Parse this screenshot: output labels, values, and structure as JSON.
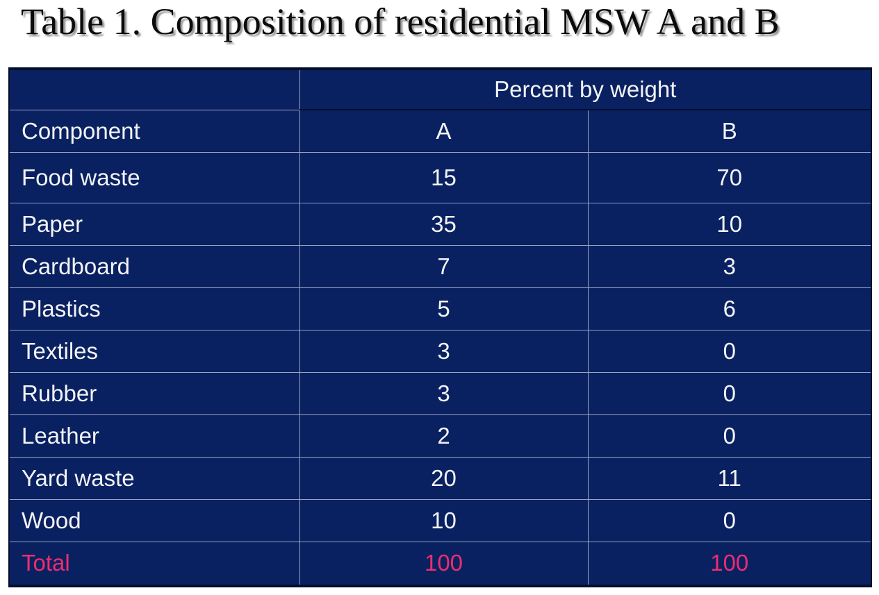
{
  "slide": {
    "title": "Table 1. Composition of residential MSW A and B"
  },
  "table": {
    "group_header": "Percent by weight",
    "component_header": "Component",
    "columns": [
      "A",
      "B"
    ],
    "rows": [
      {
        "component": "Food waste",
        "a": "15",
        "b": "70"
      },
      {
        "component": "Paper",
        "a": "35",
        "b": "10"
      },
      {
        "component": "Cardboard",
        "a": "7",
        "b": "3"
      },
      {
        "component": "Plastics",
        "a": "5",
        "b": "6"
      },
      {
        "component": "Textiles",
        "a": "3",
        "b": "0"
      },
      {
        "component": "Rubber",
        "a": "3",
        "b": "0"
      },
      {
        "component": "Leather",
        "a": "2",
        "b": "0"
      },
      {
        "component": "Yard waste",
        "a": "20",
        "b": "11"
      },
      {
        "component": "Wood",
        "a": "10",
        "b": "0"
      }
    ],
    "total": {
      "component": "Total",
      "a": "100",
      "b": "100"
    }
  },
  "colors": {
    "table_background": "#0a2161",
    "body_text": "#f2f3f5",
    "total_text": "#ec2d6f",
    "grid_light": "#9aa4c4",
    "grid_dark": "#040e2c",
    "title_text": "#0b0b0b"
  },
  "chart_data": {
    "type": "table",
    "title": "Table 1. Composition of residential MSW A and B",
    "group_header": "Percent by weight",
    "categories": [
      "Food waste",
      "Paper",
      "Cardboard",
      "Plastics",
      "Textiles",
      "Rubber",
      "Leather",
      "Yard waste",
      "Wood",
      "Total"
    ],
    "series": [
      {
        "name": "A",
        "values": [
          15,
          35,
          7,
          5,
          3,
          3,
          2,
          20,
          10,
          100
        ]
      },
      {
        "name": "B",
        "values": [
          70,
          10,
          3,
          6,
          0,
          0,
          0,
          11,
          0,
          100
        ]
      }
    ]
  }
}
